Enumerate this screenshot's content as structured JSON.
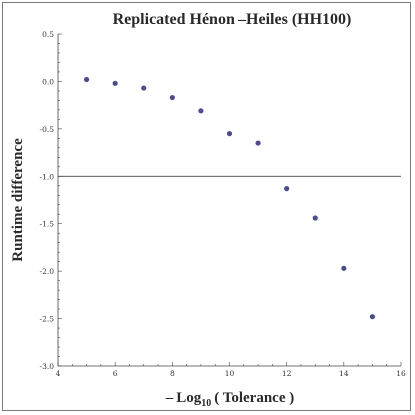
{
  "chart_data": {
    "type": "scatter",
    "title": "Replicated Hénon –Heiles (HH100)",
    "xlabel": {
      "prefix": "– Log",
      "sub": "10",
      "suffix": "( Tolerance )"
    },
    "ylabel": "Runtime difference",
    "xlim": [
      4,
      16
    ],
    "ylim": [
      -3.0,
      0.5
    ],
    "xticks": [
      4,
      6,
      8,
      10,
      12,
      14,
      16
    ],
    "yticks": [
      "0.5",
      "0.0",
      "-0.5",
      "-1.0",
      "-1.5",
      "-2.0",
      "-2.5",
      "-3.0"
    ],
    "reference_line_y": -1.0,
    "points": [
      {
        "x": 5,
        "y": 0.02
      },
      {
        "x": 6,
        "y": -0.02
      },
      {
        "x": 7,
        "y": -0.07
      },
      {
        "x": 8,
        "y": -0.17
      },
      {
        "x": 9,
        "y": -0.31
      },
      {
        "x": 10,
        "y": -0.55
      },
      {
        "x": 11,
        "y": -0.65
      },
      {
        "x": 12,
        "y": -1.13
      },
      {
        "x": 13,
        "y": -1.44
      },
      {
        "x": 14,
        "y": -1.97
      },
      {
        "x": 15,
        "y": -2.48
      }
    ],
    "colors": {
      "points": "#4b4b9a",
      "axes": "#444444"
    }
  }
}
